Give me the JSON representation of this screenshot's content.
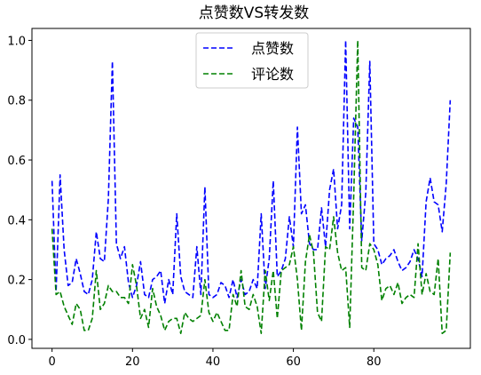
{
  "chart_data": {
    "type": "line",
    "title": "点赞数VS转发数",
    "xlabel": "",
    "ylabel": "",
    "xlim": [
      -5,
      104
    ],
    "ylim": [
      -0.03,
      1.04
    ],
    "xticks": [
      0,
      20,
      40,
      60,
      80
    ],
    "xtick_labels": [
      "0",
      "20",
      "40",
      "60",
      "80"
    ],
    "yticks": [
      0.0,
      0.2,
      0.4,
      0.6,
      0.8,
      1.0
    ],
    "ytick_labels": [
      "0.0",
      "0.2",
      "0.4",
      "0.6",
      "0.8",
      "1.0"
    ],
    "grid": false,
    "legend": "upper-center",
    "x": [
      0,
      1,
      2,
      3,
      4,
      5,
      6,
      7,
      8,
      9,
      10,
      11,
      12,
      13,
      14,
      15,
      16,
      17,
      18,
      19,
      20,
      21,
      22,
      23,
      24,
      25,
      26,
      27,
      28,
      29,
      30,
      31,
      32,
      33,
      34,
      35,
      36,
      37,
      38,
      39,
      40,
      41,
      42,
      43,
      44,
      45,
      46,
      47,
      48,
      49,
      50,
      51,
      52,
      53,
      54,
      55,
      56,
      57,
      58,
      59,
      60,
      61,
      62,
      63,
      64,
      65,
      66,
      67,
      68,
      69,
      70,
      71,
      72,
      73,
      74,
      75,
      76,
      77,
      78,
      79,
      80,
      81,
      82,
      83,
      84,
      85,
      86,
      87,
      88,
      89,
      90,
      91,
      92,
      93,
      94,
      95,
      96,
      97,
      98,
      99
    ],
    "series": [
      {
        "name": "点赞数",
        "color": "#0000ff",
        "values": [
          0.53,
          0.16,
          0.55,
          0.3,
          0.18,
          0.19,
          0.27,
          0.22,
          0.16,
          0.15,
          0.2,
          0.36,
          0.27,
          0.26,
          0.47,
          0.93,
          0.32,
          0.27,
          0.31,
          0.19,
          0.14,
          0.18,
          0.26,
          0.15,
          0.14,
          0.2,
          0.21,
          0.23,
          0.12,
          0.2,
          0.15,
          0.42,
          0.21,
          0.16,
          0.15,
          0.14,
          0.31,
          0.15,
          0.51,
          0.15,
          0.14,
          0.15,
          0.19,
          0.18,
          0.14,
          0.2,
          0.14,
          0.2,
          0.15,
          0.16,
          0.2,
          0.17,
          0.42,
          0.17,
          0.27,
          0.53,
          0.21,
          0.23,
          0.27,
          0.41,
          0.31,
          0.71,
          0.42,
          0.45,
          0.32,
          0.3,
          0.3,
          0.44,
          0.31,
          0.5,
          0.57,
          0.37,
          0.45,
          1.0,
          0.37,
          0.74,
          0.71,
          0.33,
          0.49,
          0.93,
          0.32,
          0.3,
          0.25,
          0.27,
          0.28,
          0.3,
          0.26,
          0.23,
          0.24,
          0.26,
          0.3,
          0.27,
          0.21,
          0.46,
          0.54,
          0.46,
          0.45,
          0.36,
          0.52,
          0.8
        ]
      },
      {
        "name": "评论数",
        "color": "#008000",
        "values": [
          0.37,
          0.15,
          0.16,
          0.11,
          0.08,
          0.05,
          0.12,
          0.1,
          0.03,
          0.03,
          0.07,
          0.23,
          0.1,
          0.12,
          0.18,
          0.16,
          0.16,
          0.14,
          0.14,
          0.12,
          0.25,
          0.18,
          0.07,
          0.1,
          0.04,
          0.17,
          0.11,
          0.08,
          0.03,
          0.06,
          0.07,
          0.07,
          0.02,
          0.09,
          0.07,
          0.06,
          0.07,
          0.08,
          0.2,
          0.09,
          0.06,
          0.09,
          0.06,
          0.03,
          0.03,
          0.15,
          0.11,
          0.23,
          0.11,
          0.1,
          0.15,
          0.11,
          0.02,
          0.23,
          0.13,
          0.23,
          0.07,
          0.23,
          0.24,
          0.25,
          0.31,
          0.2,
          0.03,
          0.26,
          0.35,
          0.29,
          0.09,
          0.06,
          0.31,
          0.3,
          0.41,
          0.29,
          0.23,
          0.24,
          0.04,
          0.48,
          1.0,
          0.24,
          0.23,
          0.32,
          0.3,
          0.25,
          0.13,
          0.17,
          0.18,
          0.15,
          0.19,
          0.12,
          0.14,
          0.15,
          0.14,
          0.32,
          0.15,
          0.22,
          0.16,
          0.15,
          0.27,
          0.02,
          0.03,
          0.29
        ]
      }
    ]
  }
}
